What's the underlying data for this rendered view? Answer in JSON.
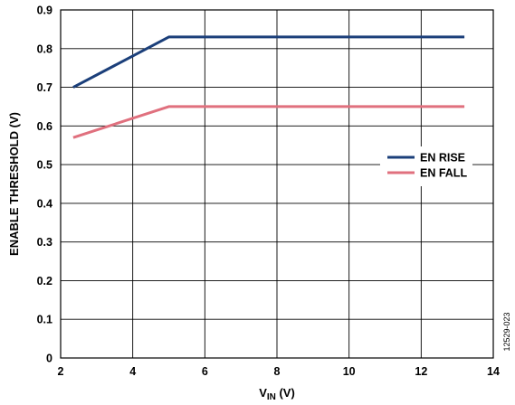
{
  "chart_data": {
    "type": "line",
    "xlabel": {
      "main": "V",
      "sub": "IN",
      "unit": " (V)"
    },
    "ylabel": "ENABLE THRESHOLD (V)",
    "xlim": [
      2,
      14
    ],
    "ylim": [
      0,
      0.9
    ],
    "xticks": [
      2,
      4,
      6,
      8,
      10,
      12,
      14
    ],
    "yticks": [
      0,
      0.1,
      0.2,
      0.3,
      0.4,
      0.5,
      0.6,
      0.7,
      0.8,
      0.9
    ],
    "xtick_labels": [
      "2",
      "4",
      "6",
      "8",
      "10",
      "12",
      "14"
    ],
    "ytick_labels": [
      "0",
      "0.1",
      "0.2",
      "0.3",
      "0.4",
      "0.5",
      "0.6",
      "0.7",
      "0.8",
      "0.9"
    ],
    "grid": true,
    "legend_position": "right",
    "series": [
      {
        "name": "EN RISE",
        "color": "#1b3f7a",
        "x": [
          2.35,
          5.0,
          13.2
        ],
        "y": [
          0.7,
          0.83,
          0.83
        ]
      },
      {
        "name": "EN FALL",
        "color": "#e0707e",
        "x": [
          2.35,
          5.0,
          13.2
        ],
        "y": [
          0.57,
          0.65,
          0.65
        ]
      }
    ],
    "figure_id": "12529-023"
  }
}
